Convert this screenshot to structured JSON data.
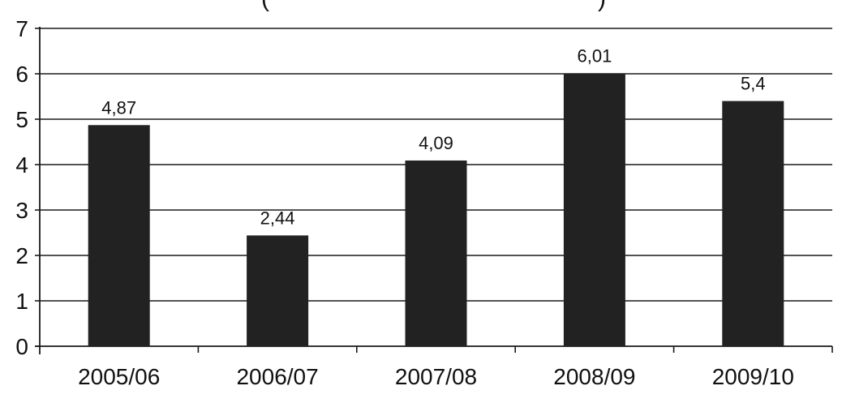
{
  "chart_data": {
    "type": "bar",
    "title": "",
    "xlabel": "",
    "ylabel": "",
    "categories": [
      "2005/06",
      "2006/07",
      "2007/08",
      "2008/09",
      "2009/10"
    ],
    "values": [
      4.87,
      2.44,
      4.09,
      6.01,
      5.4
    ],
    "data_labels": [
      "4,87",
      "2,44",
      "4,09",
      "6,01",
      "5,4"
    ],
    "y_ticks": [
      0,
      1,
      2,
      3,
      4,
      5,
      6,
      7
    ],
    "y_tick_labels": [
      "0",
      "1",
      "2",
      "3",
      "4",
      "5",
      "6",
      "7"
    ],
    "ylim": [
      0,
      7
    ],
    "grid": true,
    "legend": "none",
    "bar_color": "#222222",
    "grid_color": "#1a1a1a",
    "top_text_fragments": [
      "(",
      ")"
    ]
  }
}
